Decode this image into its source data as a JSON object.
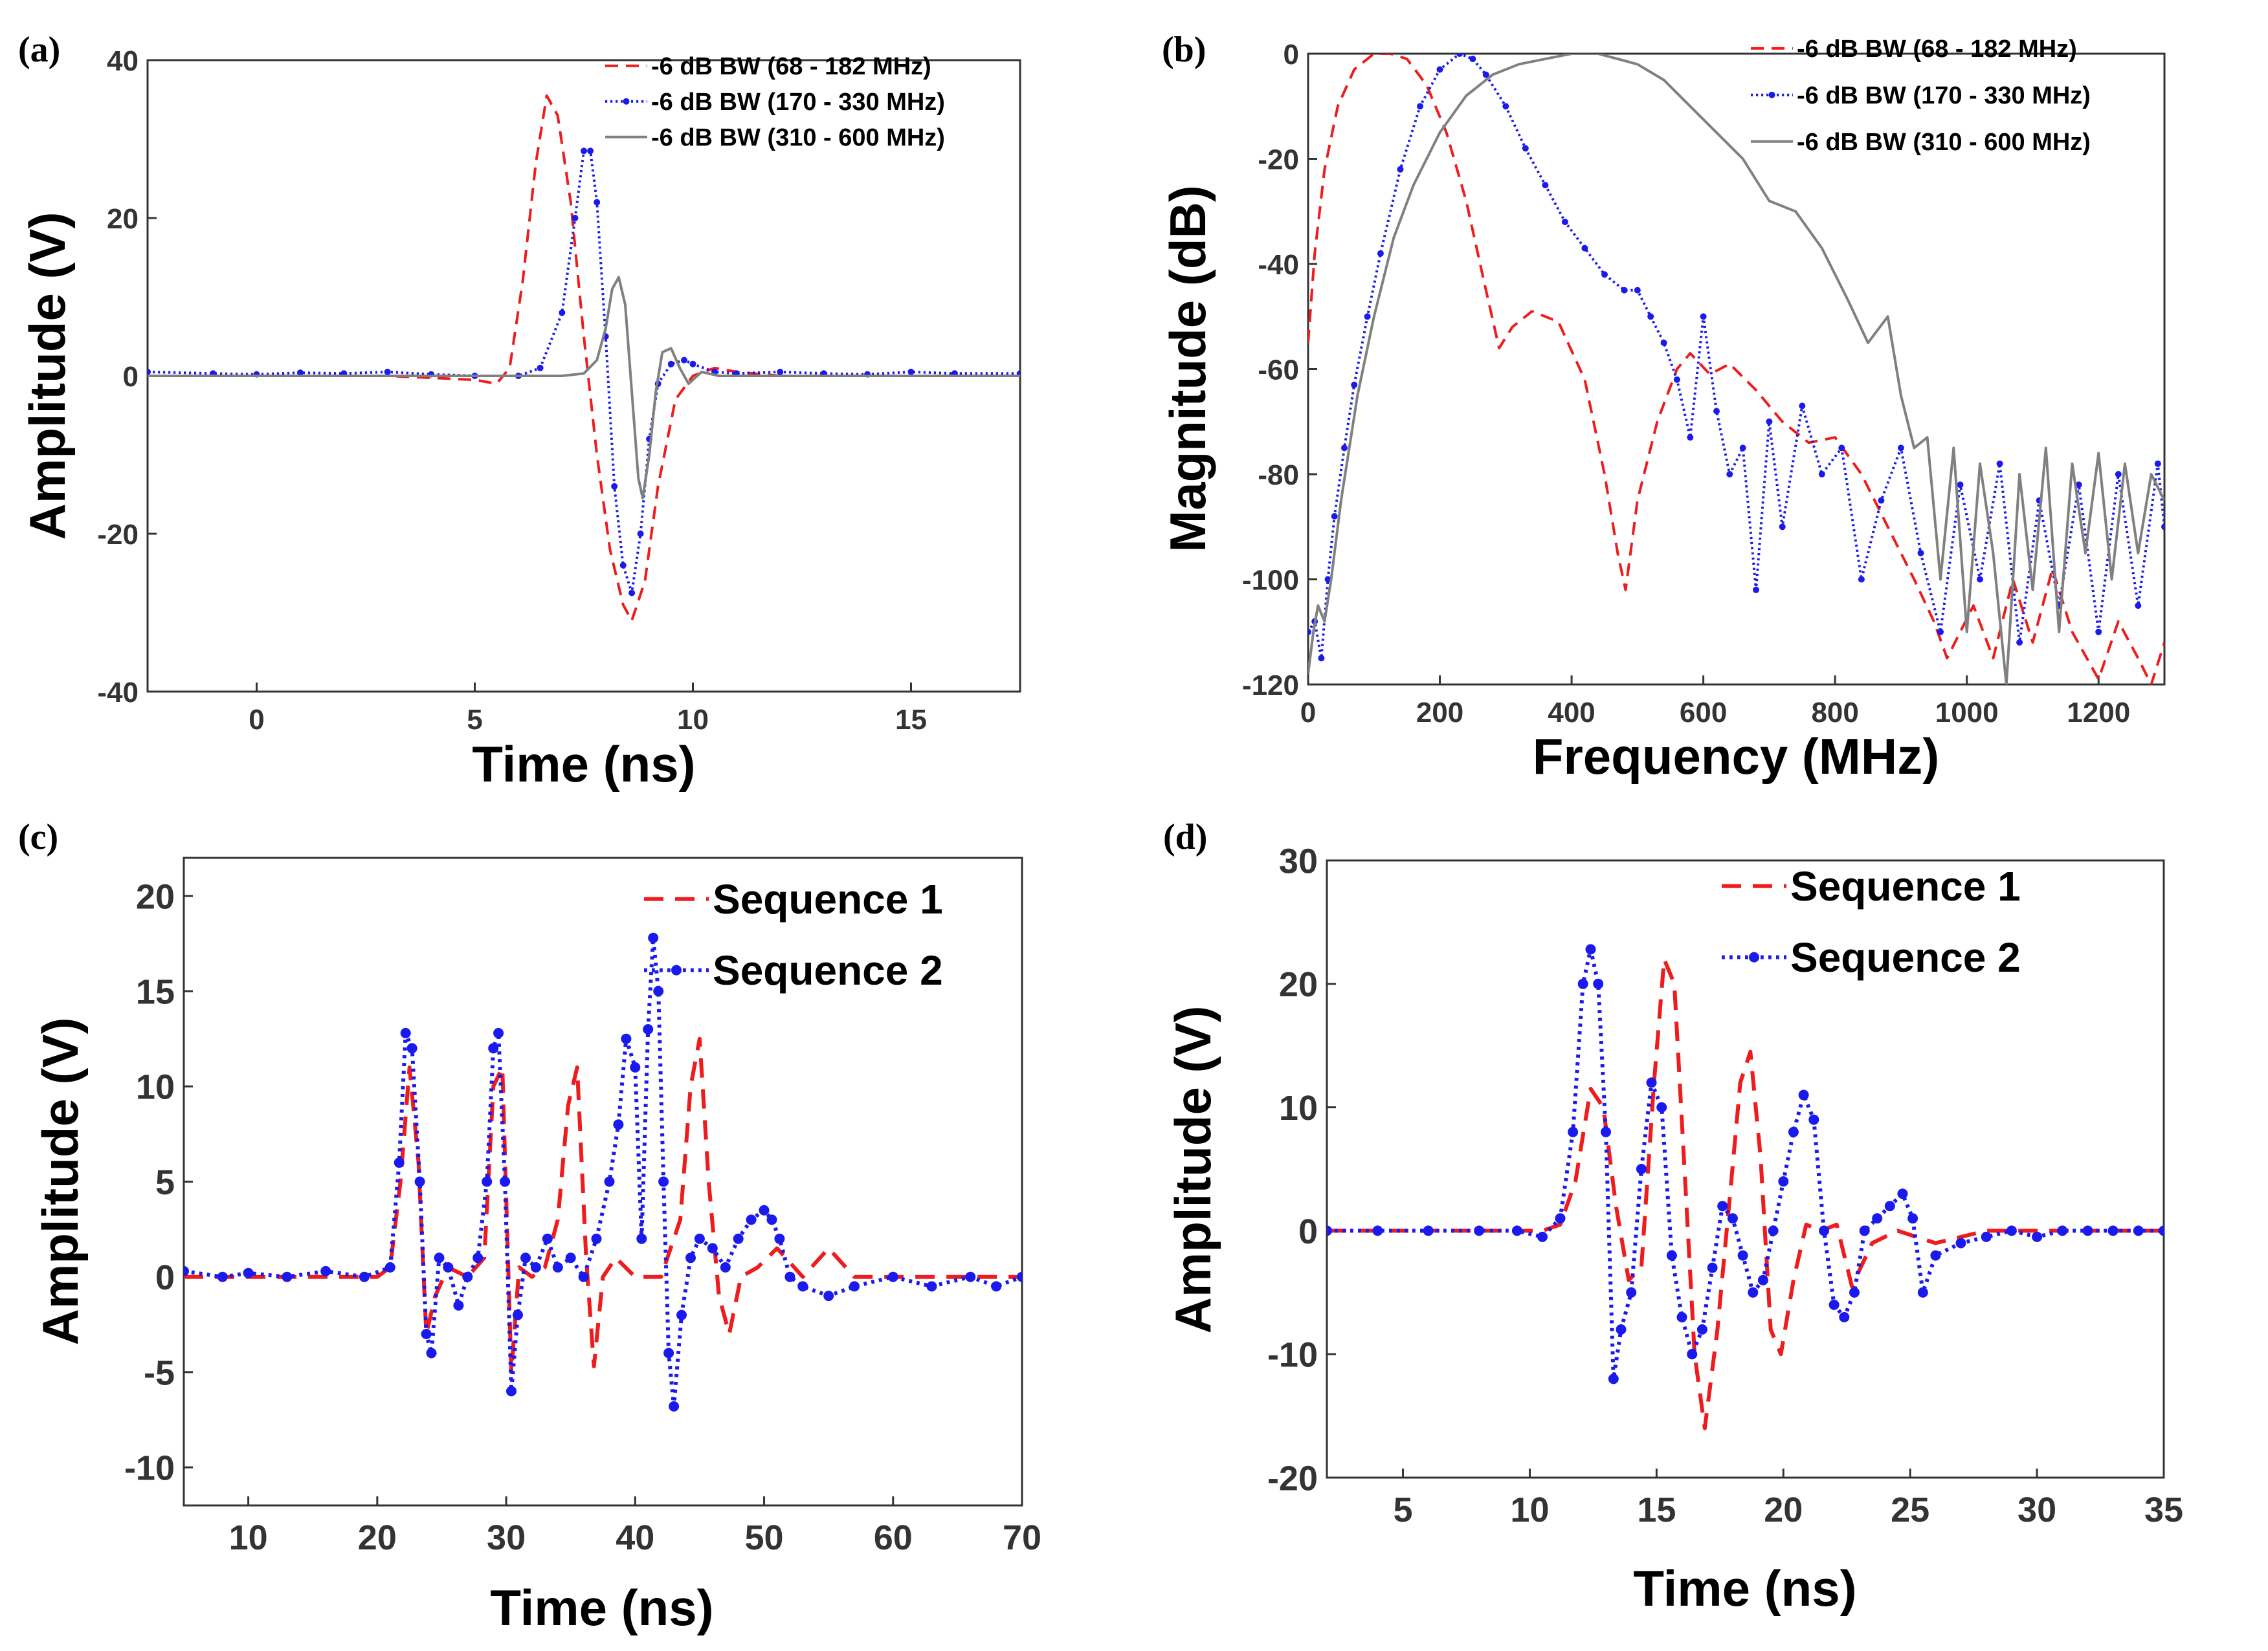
{
  "chart_data": [
    {
      "panel": "(a)",
      "type": "line",
      "xlabel": "Time (ns)",
      "ylabel": "Amplitude (V)",
      "xlim": [
        -2.5,
        17.5
      ],
      "ylim": [
        -40,
        40
      ],
      "xticks": [
        0,
        5,
        10,
        15
      ],
      "yticks": [
        -40,
        -20,
        0,
        20,
        40
      ],
      "ytick_labels": [
        "-40",
        "-20",
        "0",
        "20",
        "40"
      ],
      "grid": false,
      "legend_position": "top-right",
      "series": [
        {
          "name": "-6 dB BW (68 - 182 MHz)",
          "color": "#ee1c1c",
          "style": "dashed",
          "x": [
            -2.5,
            0,
            3,
            5,
            5.5,
            5.8,
            6.1,
            6.4,
            6.65,
            6.9,
            7.2,
            7.5,
            7.8,
            8.1,
            8.4,
            8.6,
            8.9,
            9.2,
            9.6,
            10,
            10.5,
            11,
            12,
            13,
            14,
            15,
            16,
            17.5
          ],
          "y": [
            0,
            0,
            0,
            -0.5,
            -1,
            1,
            12,
            27,
            35.5,
            33,
            22,
            5,
            -10,
            -22,
            -29,
            -31,
            -26,
            -14,
            -3,
            0,
            1,
            0.5,
            0,
            0,
            0,
            0,
            0,
            0
          ]
        },
        {
          "name": "-6 dB BW (170 - 330 MHz)",
          "color": "#1a1aee",
          "style": "dotted-marker",
          "x": [
            -2.5,
            -1,
            0,
            1,
            2,
            3,
            4,
            5,
            6,
            6.5,
            7,
            7.3,
            7.5,
            7.65,
            7.8,
            8,
            8.2,
            8.4,
            8.6,
            8.8,
            9,
            9.2,
            9.5,
            9.8,
            10,
            10.5,
            11,
            12,
            13,
            14,
            15,
            16,
            17.5
          ],
          "y": [
            0.5,
            0.3,
            0.2,
            0.4,
            0.3,
            0.5,
            0.2,
            0,
            0,
            1,
            8,
            20,
            28.5,
            28.5,
            22,
            5,
            -14,
            -24,
            -27.5,
            -20,
            -8,
            -1,
            1.5,
            2,
            1.5,
            0.5,
            0.3,
            0.5,
            0.3,
            0.2,
            0.5,
            0.3,
            0.3
          ]
        },
        {
          "name": "-6 dB BW (310 - 600 MHz)",
          "color": "#808080",
          "style": "solid",
          "x": [
            -2.5,
            0,
            5,
            6,
            7,
            7.5,
            7.8,
            8,
            8.15,
            8.3,
            8.45,
            8.6,
            8.75,
            8.85,
            9,
            9.15,
            9.3,
            9.5,
            9.7,
            9.9,
            10.2,
            10.6,
            11,
            12,
            13,
            14,
            15,
            16,
            17.5
          ],
          "y": [
            0,
            0,
            0,
            0,
            0,
            0.3,
            2,
            6,
            11,
            12.5,
            9,
            -2,
            -13,
            -15.5,
            -10,
            -2,
            3,
            3.5,
            1,
            -1,
            0.5,
            0,
            0,
            0,
            0,
            0,
            0,
            0,
            0
          ]
        }
      ]
    },
    {
      "panel": "(b)",
      "type": "line",
      "xlabel": "Frequency (MHz)",
      "ylabel": "Magnitude (dB)",
      "xlim": [
        0,
        1300
      ],
      "ylim": [
        -120,
        0
      ],
      "xticks": [
        0,
        200,
        400,
        600,
        800,
        1000,
        1200
      ],
      "yticks": [
        -120,
        -100,
        -80,
        -60,
        -40,
        -20,
        0
      ],
      "ytick_labels": [
        "-120",
        "-100",
        "-80",
        "-60",
        "-40",
        "-20",
        "0"
      ],
      "grid": false,
      "legend_position": "top-right",
      "series": [
        {
          "name": "-6 dB BW (68 - 182 MHz)",
          "color": "#ee1c1c",
          "style": "dashed",
          "x": [
            0,
            10,
            25,
            45,
            70,
            100,
            125,
            150,
            180,
            210,
            240,
            270,
            290,
            310,
            340,
            380,
            420,
            450,
            470,
            482,
            500,
            530,
            560,
            580,
            610,
            640,
            680,
            720,
            760,
            800,
            840,
            880,
            920,
            950,
            970,
            990,
            1010,
            1040,
            1070,
            1100,
            1130,
            1160,
            1200,
            1230,
            1260,
            1280,
            1300
          ],
          "y": [
            -55,
            -38,
            -22,
            -10,
            -3,
            0,
            0,
            -1,
            -6,
            -15,
            -28,
            -45,
            -56,
            -52,
            -49,
            -51,
            -62,
            -80,
            -95,
            -102,
            -85,
            -70,
            -60,
            -57,
            -61,
            -59,
            -64,
            -70,
            -74,
            -73,
            -80,
            -90,
            -100,
            -108,
            -115,
            -110,
            -105,
            -115,
            -100,
            -112,
            -98,
            -110,
            -119,
            -108,
            -115,
            -120,
            -112
          ]
        },
        {
          "name": "-6 dB BW (170 - 330 MHz)",
          "color": "#1a1aee",
          "style": "dotted-marker",
          "x": [
            0,
            10,
            20,
            30,
            40,
            55,
            70,
            90,
            110,
            140,
            170,
            200,
            230,
            250,
            270,
            300,
            330,
            360,
            390,
            420,
            450,
            480,
            500,
            520,
            540,
            560,
            580,
            600,
            620,
            640,
            660,
            680,
            700,
            720,
            750,
            780,
            810,
            840,
            870,
            900,
            930,
            960,
            990,
            1020,
            1050,
            1080,
            1110,
            1140,
            1170,
            1200,
            1230,
            1260,
            1290,
            1300
          ],
          "y": [
            -110,
            -108,
            -115,
            -100,
            -88,
            -75,
            -63,
            -50,
            -38,
            -22,
            -10,
            -3,
            0,
            -1,
            -4,
            -10,
            -18,
            -25,
            -32,
            -37,
            -42,
            -45,
            -45,
            -50,
            -55,
            -62,
            -73,
            -50,
            -68,
            -80,
            -75,
            -102,
            -70,
            -90,
            -67,
            -80,
            -75,
            -100,
            -85,
            -75,
            -95,
            -110,
            -82,
            -100,
            -78,
            -112,
            -85,
            -105,
            -82,
            -110,
            -80,
            -105,
            -78,
            -90
          ]
        },
        {
          "name": "-6 dB BW (310 - 600 MHz)",
          "color": "#808080",
          "style": "solid",
          "x": [
            0,
            8,
            15,
            25,
            35,
            50,
            75,
            100,
            130,
            160,
            200,
            240,
            280,
            320,
            360,
            400,
            440,
            470,
            500,
            540,
            580,
            620,
            660,
            700,
            740,
            780,
            820,
            850,
            880,
            900,
            920,
            940,
            960,
            980,
            1000,
            1020,
            1040,
            1060,
            1080,
            1100,
            1120,
            1140,
            1160,
            1180,
            1200,
            1220,
            1240,
            1260,
            1280,
            1300
          ],
          "y": [
            -118,
            -110,
            -105,
            -108,
            -100,
            -85,
            -65,
            -50,
            -35,
            -25,
            -15,
            -8,
            -4,
            -2,
            -1,
            0,
            0,
            -1,
            -2,
            -5,
            -10,
            -15,
            -20,
            -28,
            -30,
            -37,
            -47,
            -55,
            -50,
            -65,
            -75,
            -73,
            -100,
            -75,
            -110,
            -78,
            -95,
            -120,
            -80,
            -102,
            -75,
            -110,
            -78,
            -95,
            -76,
            -100,
            -78,
            -95,
            -80,
            -85
          ]
        }
      ]
    },
    {
      "panel": "(c)",
      "type": "line",
      "xlabel": "Time (ns)",
      "ylabel": "Amplitude (V)",
      "xlim": [
        5,
        70
      ],
      "ylim": [
        -12,
        22
      ],
      "xticks": [
        10,
        20,
        30,
        40,
        50,
        60,
        70
      ],
      "yticks": [
        -10,
        -5,
        0,
        5,
        10,
        15,
        20
      ],
      "ytick_labels": [
        "-10",
        "-5",
        "0",
        "5",
        "10",
        "15",
        "20"
      ],
      "grid": false,
      "legend_position": "top-right",
      "series": [
        {
          "name": "Sequence 1",
          "color": "#ee1c1c",
          "style": "dashed",
          "x": [
            5,
            15,
            20,
            21,
            21.8,
            22.5,
            23.2,
            23.8,
            24.5,
            25.5,
            27,
            28.3,
            29,
            29.7,
            30.4,
            31,
            32,
            33,
            34,
            34.8,
            35.5,
            36.2,
            36.8,
            37.5,
            38.5,
            40,
            42,
            43.5,
            44.3,
            45,
            45.7,
            46.5,
            47.3,
            48.2,
            49.5,
            51,
            53,
            55,
            57,
            60,
            65,
            70
          ],
          "y": [
            0,
            0,
            0,
            0.5,
            5,
            11,
            6,
            -3,
            -1,
            0.5,
            0,
            1,
            10,
            11,
            -5,
            0.5,
            0,
            0.5,
            3,
            9,
            11,
            1,
            -4.7,
            0,
            1,
            0,
            0,
            3,
            10,
            12.5,
            5,
            -1,
            -3,
            0,
            0.5,
            1.5,
            0,
            1.5,
            0,
            0,
            0,
            0
          ]
        },
        {
          "name": "Sequence 2",
          "color": "#1a1aee",
          "style": "dotted-marker",
          "x": [
            5,
            8,
            10,
            13,
            16,
            19,
            21,
            21.7,
            22.2,
            22.7,
            23.3,
            23.8,
            24.2,
            24.8,
            25.5,
            26.3,
            27,
            27.8,
            28.5,
            29,
            29.4,
            29.9,
            30.4,
            30.9,
            31.5,
            32.3,
            33.2,
            34,
            35,
            36,
            37,
            38,
            38.7,
            39.3,
            40,
            40.5,
            41,
            41.4,
            41.8,
            42.2,
            42.6,
            43,
            43.6,
            44.3,
            45,
            46,
            47,
            48,
            49,
            50,
            50.6,
            51.2,
            52,
            53,
            55,
            57,
            60,
            63,
            66,
            68,
            70
          ],
          "y": [
            0.3,
            0,
            0.2,
            0,
            0.3,
            0,
            0.5,
            6,
            12.8,
            12,
            5,
            -3,
            -4,
            1,
            0.5,
            -1.5,
            0,
            1,
            5,
            12,
            12.8,
            5,
            -6,
            -2,
            1,
            0.5,
            2,
            0.5,
            1,
            0,
            2,
            5,
            8,
            12.5,
            11,
            2,
            13,
            17.8,
            15,
            5,
            -4,
            -6.8,
            -2,
            1,
            2,
            1.5,
            0.5,
            2,
            3,
            3.5,
            3,
            2,
            0,
            -0.5,
            -1,
            -0.5,
            0,
            -0.5,
            0,
            -0.5,
            0
          ]
        }
      ]
    },
    {
      "panel": "(d)",
      "type": "line",
      "xlabel": "Time (ns)",
      "ylabel": "Amplitude (V)",
      "xlim": [
        2,
        35
      ],
      "ylim": [
        -20,
        30
      ],
      "xticks": [
        5,
        10,
        15,
        20,
        25,
        30,
        35
      ],
      "yticks": [
        -20,
        -10,
        0,
        10,
        20,
        30
      ],
      "ytick_labels": [
        "-20",
        "-10",
        "0",
        "10",
        "20",
        "30"
      ],
      "grid": false,
      "legend_position": "top-right",
      "series": [
        {
          "name": "Sequence 1",
          "color": "#ee1c1c",
          "style": "dashed",
          "x": [
            2,
            6,
            9,
            10.5,
            11.2,
            11.8,
            12.4,
            12.9,
            13.4,
            13.9,
            14.4,
            14.9,
            15.3,
            15.7,
            16.1,
            16.5,
            16.9,
            17.4,
            17.9,
            18.3,
            18.7,
            19.1,
            19.5,
            19.9,
            20.4,
            20.9,
            21.5,
            22.1,
            22.7,
            23.5,
            24.5,
            26,
            28,
            30,
            32,
            35
          ],
          "y": [
            0,
            0,
            0,
            0,
            0.5,
            4,
            11.5,
            10,
            2,
            -4,
            -3,
            12,
            22,
            20,
            5,
            -10,
            -16,
            -8,
            3,
            12,
            14.5,
            6,
            -8,
            -10,
            -4,
            0.5,
            0,
            0.5,
            -4.5,
            -1,
            0,
            -1,
            0,
            0,
            0,
            0
          ]
        },
        {
          "name": "Sequence 2",
          "color": "#1a1aee",
          "style": "dotted-marker",
          "x": [
            2,
            4,
            6,
            8,
            9.5,
            10.5,
            11.2,
            11.7,
            12.1,
            12.4,
            12.7,
            13,
            13.3,
            13.6,
            14,
            14.4,
            14.8,
            15.2,
            15.6,
            16,
            16.4,
            16.8,
            17.2,
            17.6,
            18,
            18.4,
            18.8,
            19.2,
            19.6,
            20,
            20.4,
            20.8,
            21.2,
            21.6,
            22,
            22.4,
            22.8,
            23.2,
            23.7,
            24.2,
            24.7,
            25.1,
            25.5,
            26,
            27,
            28,
            29,
            30,
            31,
            32,
            33,
            34,
            35
          ],
          "y": [
            0,
            0,
            0,
            0,
            0,
            -0.5,
            1,
            8,
            20,
            22.8,
            20,
            8,
            -12,
            -8,
            -5,
            5,
            12,
            10,
            -2,
            -7,
            -10,
            -8,
            -3,
            2,
            1,
            -2,
            -5,
            -4,
            0,
            4,
            8,
            11,
            9,
            0,
            -6,
            -7,
            -5,
            0,
            1,
            2,
            3,
            1,
            -5,
            -2,
            -1,
            -0.5,
            0,
            -0.5,
            0,
            0,
            0,
            0,
            0
          ]
        }
      ]
    }
  ]
}
